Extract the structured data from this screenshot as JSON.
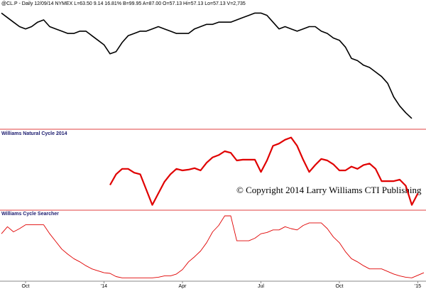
{
  "chart_data": [
    {
      "type": "line",
      "title": "@CL.P - Daily  12/09/14  NYMEX  L=63.50  9.14  16.81%  B=99.95  A=87.00  O=57.13  Hi=57.13  Lo=57.13  V=2,735",
      "color": "#000000",
      "ylim": [
        60,
        112
      ],
      "values": [
        110,
        108,
        106,
        104,
        103,
        104,
        106,
        107,
        104,
        103,
        102,
        101,
        101,
        102,
        102,
        100,
        98,
        96,
        92,
        93,
        97,
        100,
        101,
        102,
        102,
        103,
        104,
        103,
        102,
        101,
        101,
        101,
        103,
        104,
        105,
        105,
        106,
        106,
        106,
        107,
        108,
        109,
        110,
        110,
        109,
        106,
        103,
        104,
        103,
        102,
        103,
        104,
        104,
        102,
        101,
        99,
        98,
        95,
        90,
        89,
        87,
        86,
        84,
        82,
        79,
        73,
        69,
        66,
        63.5,
        null,
        null
      ]
    },
    {
      "type": "line",
      "title": "Williams Natural Cycle 2014",
      "annotation": "© Copyright 2014 Larry Williams CTI Publishing",
      "color": "#e00000",
      "ylim": [
        0,
        100
      ],
      "values": [
        null,
        null,
        null,
        null,
        null,
        null,
        null,
        null,
        null,
        null,
        null,
        null,
        null,
        null,
        null,
        null,
        null,
        null,
        31,
        45,
        52,
        52,
        47,
        45,
        25,
        5,
        20,
        35,
        45,
        52,
        50,
        51,
        53,
        50,
        60,
        67,
        70,
        75,
        73,
        63,
        64,
        64,
        64,
        48,
        63,
        82,
        85,
        90,
        93,
        82,
        64,
        48,
        57,
        65,
        63,
        58,
        50,
        50,
        55,
        52,
        57,
        59,
        52,
        36,
        36,
        36,
        38,
        30,
        5,
        20,
        null
      ]
    },
    {
      "type": "line",
      "title": "Williams Cycle Searcher",
      "color": "#e00000",
      "ylim": [
        0,
        100
      ],
      "categories": [
        null,
        null,
        null,
        null,
        "Oct",
        null,
        null,
        null,
        null,
        null,
        null,
        null,
        null,
        null,
        null,
        null,
        null,
        "'14",
        null,
        null,
        null,
        null,
        null,
        null,
        null,
        null,
        null,
        null,
        null,
        null,
        "Apr",
        null,
        null,
        null,
        null,
        null,
        null,
        null,
        null,
        null,
        null,
        null,
        null,
        "Jul",
        null,
        null,
        null,
        null,
        null,
        null,
        null,
        null,
        null,
        null,
        null,
        null,
        "Oct",
        null,
        null,
        null,
        null,
        null,
        null,
        null,
        null,
        null,
        null,
        null,
        null,
        "'15",
        null
      ],
      "values": [
        72,
        83,
        75,
        80,
        86,
        86,
        86,
        86,
        72,
        60,
        48,
        40,
        33,
        28,
        22,
        17,
        14,
        11,
        10,
        5,
        3,
        3,
        3,
        3,
        3,
        3,
        4,
        6,
        6,
        9,
        16,
        28,
        36,
        45,
        58,
        75,
        85,
        100,
        100,
        61,
        61,
        61,
        65,
        72,
        74,
        78,
        78,
        83,
        80,
        78,
        85,
        89,
        89,
        89,
        80,
        67,
        58,
        44,
        33,
        28,
        22,
        17,
        17,
        17,
        13,
        9,
        6,
        4,
        3,
        7,
        11
      ]
    }
  ]
}
